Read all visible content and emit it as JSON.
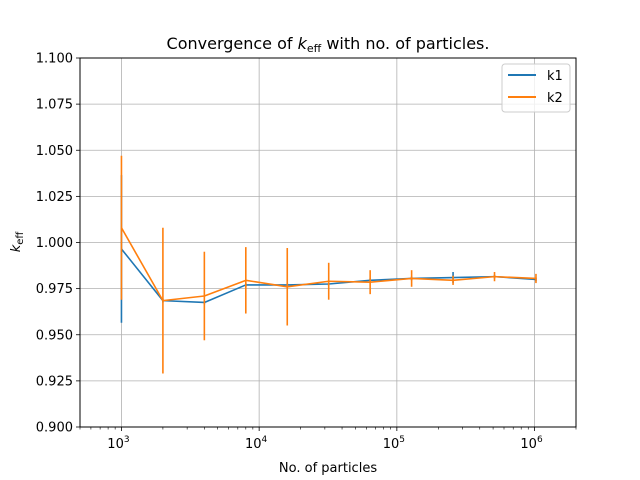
{
  "chart_data": {
    "type": "line",
    "title": {
      "prefix": "Convergence of ",
      "symbol": "k",
      "subscript": "eff",
      "suffix": " with no. of particles."
    },
    "xlabel": "No. of particles",
    "ylabel": {
      "symbol": "k",
      "subscript": "eff"
    },
    "xscale": "log",
    "xlim": [
      500,
      2000000
    ],
    "ylim": [
      0.9,
      1.1
    ],
    "grid": true,
    "legend_position": "top-right",
    "x_ticks": [
      {
        "value": 1000,
        "base": "10",
        "exp": "3"
      },
      {
        "value": 10000,
        "base": "10",
        "exp": "4"
      },
      {
        "value": 100000,
        "base": "10",
        "exp": "5"
      },
      {
        "value": 1000000,
        "base": "10",
        "exp": "6"
      }
    ],
    "y_ticks": [
      "0.900",
      "0.925",
      "0.950",
      "0.975",
      "1.000",
      "1.025",
      "1.050",
      "1.075",
      "1.100"
    ],
    "x": [
      1000,
      2000,
      4000,
      8000,
      16000,
      32000,
      64000,
      128000,
      256000,
      512000,
      1024000
    ],
    "series": [
      {
        "name": "k1",
        "color": "#1f77b4",
        "values": [
          0.9965,
          0.9685,
          0.9675,
          0.977,
          0.977,
          0.9775,
          0.9795,
          0.9805,
          0.981,
          0.9815,
          0.98
        ],
        "errors": [
          0.04,
          0.001,
          0.001,
          0.001,
          0.001,
          0.001,
          0.001,
          0.001,
          0.003,
          0.001,
          0.001
        ]
      },
      {
        "name": "k2",
        "color": "#ff7f0e",
        "values": [
          1.008,
          0.9685,
          0.971,
          0.9795,
          0.976,
          0.979,
          0.9785,
          0.9805,
          0.9795,
          0.9815,
          0.9805
        ],
        "errors": [
          0.039,
          0.0395,
          0.024,
          0.018,
          0.021,
          0.01,
          0.0065,
          0.0045,
          0.0025,
          0.0025,
          0.0025
        ]
      }
    ]
  }
}
